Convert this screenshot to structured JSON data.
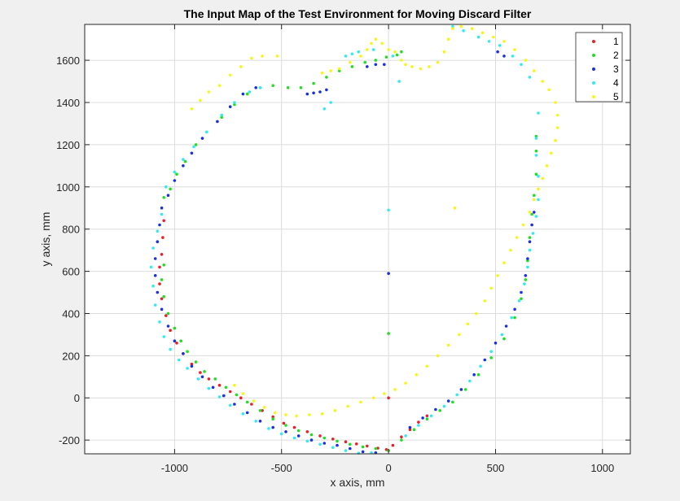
{
  "chart_data": {
    "type": "scatter",
    "title": "The Input Map of the Test Environment for Moving Discard Filter",
    "xlabel": "x axis, mm",
    "ylabel": "y axis, mm",
    "xlim": [
      -1420,
      1130
    ],
    "ylim": [
      -265,
      1770
    ],
    "xticks": [
      -1000,
      -500,
      0,
      500,
      1000
    ],
    "xtick_labels": [
      "-1000",
      "-500",
      "0",
      "500",
      "1000"
    ],
    "yticks": [
      -200,
      0,
      200,
      400,
      600,
      800,
      1000,
      1200,
      1400,
      1600
    ],
    "ytick_labels": [
      "-200",
      "0",
      "200",
      "400",
      "600",
      "800",
      "1000",
      "1200",
      "1400",
      "1600"
    ],
    "grid": true,
    "legend_position": "top-right",
    "series": [
      {
        "name": "1",
        "color": "#e8202a",
        "points": [
          [
            -1050,
            840
          ],
          [
            -1055,
            760
          ],
          [
            -1060,
            680
          ],
          [
            -1070,
            620
          ],
          [
            -1070,
            540
          ],
          [
            -1060,
            470
          ],
          [
            -1040,
            390
          ],
          [
            -1020,
            320
          ],
          [
            -990,
            260
          ],
          [
            -960,
            210
          ],
          [
            -920,
            160
          ],
          [
            -880,
            120
          ],
          [
            -840,
            90
          ],
          [
            -790,
            60
          ],
          [
            -740,
            30
          ],
          [
            -690,
            0
          ],
          [
            -640,
            -30
          ],
          [
            -590,
            -60
          ],
          [
            -540,
            -90
          ],
          [
            -490,
            -120
          ],
          [
            -440,
            -140
          ],
          [
            -380,
            -160
          ],
          [
            -320,
            -180
          ],
          [
            -260,
            -195
          ],
          [
            -200,
            -208
          ],
          [
            -150,
            -218
          ],
          [
            -100,
            -228
          ],
          [
            -50,
            -238
          ],
          [
            -10,
            -245
          ],
          [
            0,
            0
          ],
          [
            20,
            -225
          ],
          [
            60,
            -185
          ],
          [
            100,
            -150
          ],
          [
            140,
            -115
          ],
          [
            180,
            -85
          ]
        ]
      },
      {
        "name": "2",
        "color": "#22dd22",
        "points": [
          [
            -1050,
            950
          ],
          [
            -1020,
            990
          ],
          [
            -990,
            1060
          ],
          [
            -950,
            1120
          ],
          [
            -900,
            1200
          ],
          [
            -850,
            1260
          ],
          [
            -780,
            1330
          ],
          [
            -720,
            1390
          ],
          [
            -660,
            1440
          ],
          [
            -600,
            1470
          ],
          [
            -540,
            1480
          ],
          [
            -470,
            1470
          ],
          [
            -410,
            1470
          ],
          [
            -350,
            1490
          ],
          [
            -290,
            1520
          ],
          [
            -230,
            1550
          ],
          [
            -170,
            1570
          ],
          [
            -110,
            1590
          ],
          [
            -60,
            1600
          ],
          [
            -10,
            1615
          ],
          [
            40,
            1625
          ],
          [
            60,
            1640
          ],
          [
            -1050,
            630
          ],
          [
            -1060,
            560
          ],
          [
            -1050,
            480
          ],
          [
            -1030,
            400
          ],
          [
            -1000,
            330
          ],
          [
            -970,
            270
          ],
          [
            -940,
            220
          ],
          [
            -900,
            170
          ],
          [
            -860,
            125
          ],
          [
            -810,
            90
          ],
          [
            -760,
            50
          ],
          [
            -710,
            15
          ],
          [
            -660,
            -20
          ],
          [
            -600,
            -60
          ],
          [
            -540,
            -100
          ],
          [
            -480,
            -130
          ],
          [
            -420,
            -155
          ],
          [
            -360,
            -175
          ],
          [
            -300,
            -190
          ],
          [
            -240,
            -205
          ],
          [
            -180,
            -220
          ],
          [
            -120,
            -232
          ],
          [
            -60,
            -240
          ],
          [
            0,
            -250
          ],
          [
            0,
            305
          ],
          [
            60,
            -200
          ],
          [
            120,
            -150
          ],
          [
            180,
            -100
          ],
          [
            240,
            -60
          ],
          [
            300,
            -20
          ],
          [
            360,
            40
          ],
          [
            420,
            110
          ],
          [
            480,
            190
          ],
          [
            540,
            280
          ],
          [
            590,
            380
          ],
          [
            620,
            470
          ],
          [
            640,
            560
          ],
          [
            650,
            650
          ],
          [
            660,
            760
          ],
          [
            670,
            870
          ],
          [
            680,
            960
          ],
          [
            690,
            1060
          ],
          [
            690,
            1170
          ],
          [
            690,
            1240
          ]
        ]
      },
      {
        "name": "3",
        "color": "#1a2ee6",
        "points": [
          [
            -1030,
            960
          ],
          [
            -1000,
            1030
          ],
          [
            -960,
            1100
          ],
          [
            -920,
            1160
          ],
          [
            -870,
            1230
          ],
          [
            -800,
            1310
          ],
          [
            -740,
            1380
          ],
          [
            -680,
            1440
          ],
          [
            -620,
            1470
          ],
          [
            -380,
            1440
          ],
          [
            -350,
            1445
          ],
          [
            -320,
            1450
          ],
          [
            -290,
            1460
          ],
          [
            -100,
            1570
          ],
          [
            -60,
            1580
          ],
          [
            -20,
            1580
          ],
          [
            -1060,
            900
          ],
          [
            -1070,
            820
          ],
          [
            -1080,
            740
          ],
          [
            -1090,
            660
          ],
          [
            -1090,
            580
          ],
          [
            -1080,
            500
          ],
          [
            -1060,
            420
          ],
          [
            -1030,
            340
          ],
          [
            -1000,
            270
          ],
          [
            -960,
            210
          ],
          [
            -920,
            150
          ],
          [
            -870,
            100
          ],
          [
            -820,
            50
          ],
          [
            -770,
            10
          ],
          [
            -720,
            -30
          ],
          [
            -660,
            -70
          ],
          [
            -600,
            -110
          ],
          [
            -540,
            -140
          ],
          [
            -480,
            -160
          ],
          [
            -420,
            -180
          ],
          [
            -360,
            -200
          ],
          [
            -300,
            -215
          ],
          [
            -240,
            -225
          ],
          [
            -180,
            -240
          ],
          [
            -120,
            -255
          ],
          [
            -60,
            -260
          ],
          [
            0,
            590
          ],
          [
            100,
            -140
          ],
          [
            160,
            -95
          ],
          [
            220,
            -55
          ],
          [
            280,
            -15
          ],
          [
            340,
            40
          ],
          [
            400,
            110
          ],
          [
            450,
            180
          ],
          [
            500,
            260
          ],
          [
            550,
            340
          ],
          [
            590,
            420
          ],
          [
            620,
            500
          ],
          [
            640,
            580
          ],
          [
            650,
            660
          ],
          [
            660,
            740
          ],
          [
            670,
            820
          ],
          [
            680,
            880
          ],
          [
            510,
            1640
          ],
          [
            540,
            1620
          ]
        ]
      },
      {
        "name": "4",
        "color": "#33eaf0",
        "points": [
          [
            -1040,
            1000
          ],
          [
            -1000,
            1070
          ],
          [
            -960,
            1130
          ],
          [
            -910,
            1190
          ],
          [
            -850,
            1260
          ],
          [
            -780,
            1340
          ],
          [
            -720,
            1400
          ],
          [
            -650,
            1450
          ],
          [
            -600,
            1470
          ],
          [
            -300,
            1370
          ],
          [
            -270,
            1400
          ],
          [
            -200,
            1620
          ],
          [
            -170,
            1630
          ],
          [
            -140,
            1640
          ],
          [
            -70,
            1650
          ],
          [
            20,
            1620
          ],
          [
            50,
            1500
          ],
          [
            0,
            890
          ],
          [
            -1060,
            870
          ],
          [
            -1080,
            790
          ],
          [
            -1100,
            710
          ],
          [
            -1110,
            620
          ],
          [
            -1100,
            530
          ],
          [
            -1090,
            440
          ],
          [
            -1070,
            360
          ],
          [
            -1050,
            290
          ],
          [
            -1020,
            230
          ],
          [
            -980,
            180
          ],
          [
            -940,
            140
          ],
          [
            -890,
            90
          ],
          [
            -840,
            45
          ],
          [
            -790,
            5
          ],
          [
            -740,
            -35
          ],
          [
            -680,
            -75
          ],
          [
            -620,
            -110
          ],
          [
            -560,
            -145
          ],
          [
            -500,
            -170
          ],
          [
            -440,
            -190
          ],
          [
            -380,
            -205
          ],
          [
            -320,
            -220
          ],
          [
            -260,
            -235
          ],
          [
            -200,
            -250
          ],
          [
            -140,
            -262
          ],
          [
            -80,
            -260
          ],
          [
            80,
            -180
          ],
          [
            140,
            -130
          ],
          [
            200,
            -85
          ],
          [
            260,
            -40
          ],
          [
            320,
            15
          ],
          [
            380,
            80
          ],
          [
            430,
            150
          ],
          [
            480,
            220
          ],
          [
            530,
            300
          ],
          [
            575,
            380
          ],
          [
            610,
            460
          ],
          [
            635,
            540
          ],
          [
            650,
            620
          ],
          [
            660,
            700
          ],
          [
            675,
            780
          ],
          [
            690,
            860
          ],
          [
            700,
            940
          ],
          [
            700,
            1050
          ],
          [
            690,
            1150
          ],
          [
            690,
            1230
          ],
          [
            700,
            1350
          ],
          [
            300,
            1760
          ],
          [
            350,
            1740
          ],
          [
            420,
            1710
          ],
          [
            470,
            1690
          ],
          [
            520,
            1670
          ],
          [
            580,
            1620
          ],
          [
            620,
            1580
          ],
          [
            660,
            1520
          ]
        ]
      },
      {
        "name": "5",
        "color": "#f5f518",
        "points": [
          [
            -920,
            1370
          ],
          [
            -880,
            1410
          ],
          [
            -840,
            1450
          ],
          [
            -790,
            1480
          ],
          [
            -740,
            1530
          ],
          [
            -690,
            1570
          ],
          [
            -640,
            1610
          ],
          [
            -590,
            1620
          ],
          [
            -520,
            1620
          ],
          [
            -310,
            1540
          ],
          [
            -270,
            1550
          ],
          [
            -230,
            1560
          ],
          [
            -180,
            1590
          ],
          [
            -130,
            1620
          ],
          [
            -100,
            1650
          ],
          [
            -80,
            1680
          ],
          [
            -60,
            1700
          ],
          [
            -30,
            1680
          ],
          [
            0,
            1650
          ],
          [
            30,
            1640
          ],
          [
            60,
            1600
          ],
          [
            80,
            1580
          ],
          [
            110,
            1570
          ],
          [
            150,
            1560
          ],
          [
            190,
            1570
          ],
          [
            230,
            1590
          ],
          [
            260,
            1640
          ],
          [
            280,
            1700
          ],
          [
            300,
            1750
          ],
          [
            340,
            1760
          ],
          [
            390,
            1750
          ],
          [
            440,
            1730
          ],
          [
            490,
            1710
          ],
          [
            540,
            1690
          ],
          [
            590,
            1650
          ],
          [
            640,
            1600
          ],
          [
            680,
            1550
          ],
          [
            720,
            1500
          ],
          [
            750,
            1460
          ],
          [
            780,
            1400
          ],
          [
            790,
            1340
          ],
          [
            790,
            1280
          ],
          [
            780,
            1220
          ],
          [
            760,
            1160
          ],
          [
            740,
            1100
          ],
          [
            720,
            1040
          ],
          [
            700,
            990
          ],
          [
            680,
            940
          ],
          [
            660,
            880
          ],
          [
            630,
            820
          ],
          [
            600,
            760
          ],
          [
            570,
            700
          ],
          [
            540,
            640
          ],
          [
            510,
            580
          ],
          [
            480,
            520
          ],
          [
            450,
            460
          ],
          [
            410,
            400
          ],
          [
            370,
            350
          ],
          [
            330,
            300
          ],
          [
            280,
            250
          ],
          [
            230,
            200
          ],
          [
            180,
            150
          ],
          [
            130,
            110
          ],
          [
            80,
            70
          ],
          [
            30,
            40
          ],
          [
            -20,
            20
          ],
          [
            -70,
            0
          ],
          [
            -130,
            -20
          ],
          [
            -190,
            -40
          ],
          [
            -250,
            -60
          ],
          [
            -310,
            -75
          ],
          [
            -370,
            -80
          ],
          [
            -430,
            -85
          ],
          [
            -480,
            -80
          ],
          [
            -530,
            -70
          ],
          [
            -580,
            -45
          ],
          [
            -630,
            -15
          ],
          [
            -680,
            20
          ],
          [
            -720,
            60
          ],
          [
            310,
            900
          ]
        ]
      }
    ]
  }
}
